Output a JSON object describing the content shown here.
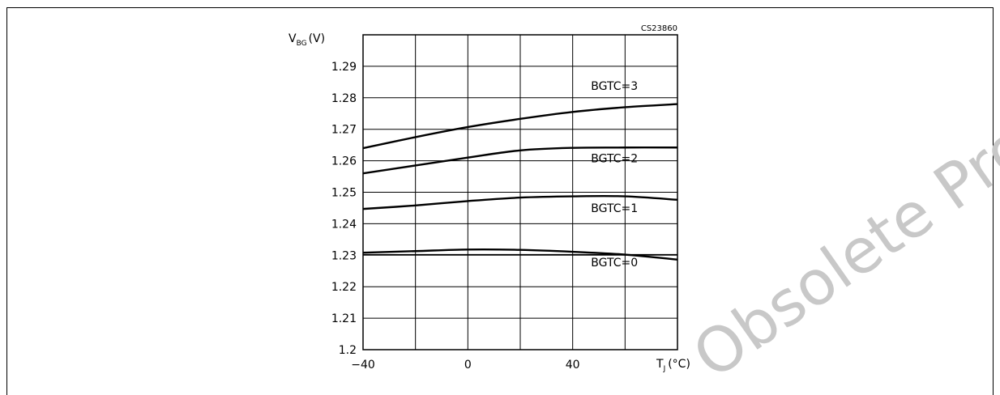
{
  "figure_code": "CS23860",
  "watermark": "Obsolete Product(s)",
  "chart_data": {
    "type": "line",
    "ylabel": {
      "main": "V",
      "sub": "BG",
      "unit": "(V)"
    },
    "xlabel": {
      "main": "T",
      "sub": "J",
      "unit": "(°C)"
    },
    "xlim": [
      -40,
      80
    ],
    "ylim": [
      1.2,
      1.3
    ],
    "x_ticks": [
      -40,
      0,
      40
    ],
    "y_ticks": [
      1.2,
      1.21,
      1.22,
      1.23,
      1.24,
      1.25,
      1.26,
      1.27,
      1.28,
      1.29
    ],
    "x_grid": [
      -40,
      -20,
      0,
      20,
      40,
      60,
      80
    ],
    "y_grid": [
      1.2,
      1.21,
      1.22,
      1.23,
      1.24,
      1.25,
      1.26,
      1.27,
      1.28,
      1.29,
      1.3
    ],
    "grid": true,
    "series": [
      {
        "name": "BGTC=3",
        "x": [
          -40,
          -20,
          0,
          20,
          40,
          60,
          80
        ],
        "y": [
          1.264,
          1.2675,
          1.2707,
          1.2733,
          1.2755,
          1.277,
          1.278
        ]
      },
      {
        "name": "BGTC=2",
        "x": [
          -40,
          -20,
          0,
          20,
          40,
          60,
          80
        ],
        "y": [
          1.256,
          1.2585,
          1.261,
          1.2633,
          1.2641,
          1.2642,
          1.2642
        ]
      },
      {
        "name": "BGTC=1",
        "x": [
          -40,
          -20,
          0,
          20,
          40,
          60,
          80
        ],
        "y": [
          1.2447,
          1.2458,
          1.2472,
          1.2483,
          1.2487,
          1.2487,
          1.2476
        ]
      },
      {
        "name": "BGTC=0 (upper)",
        "x": [
          -40,
          -20,
          0,
          20,
          40,
          60,
          80
        ],
        "y": [
          1.2308,
          1.2313,
          1.2318,
          1.2317,
          1.2311,
          1.2302,
          1.2286
        ]
      },
      {
        "name": "BGTC=0 (lower)",
        "x": [
          -40,
          80
        ],
        "y": [
          1.2302,
          1.2302
        ]
      }
    ],
    "labels": [
      {
        "text": "BGTC=3",
        "x": 47,
        "y": 1.2825
      },
      {
        "text": "BGTC=2",
        "x": 47,
        "y": 1.2595
      },
      {
        "text": "BGTC=1",
        "x": 47,
        "y": 1.2437
      },
      {
        "text": "BGTC=0",
        "x": 47,
        "y": 1.2265
      }
    ]
  }
}
